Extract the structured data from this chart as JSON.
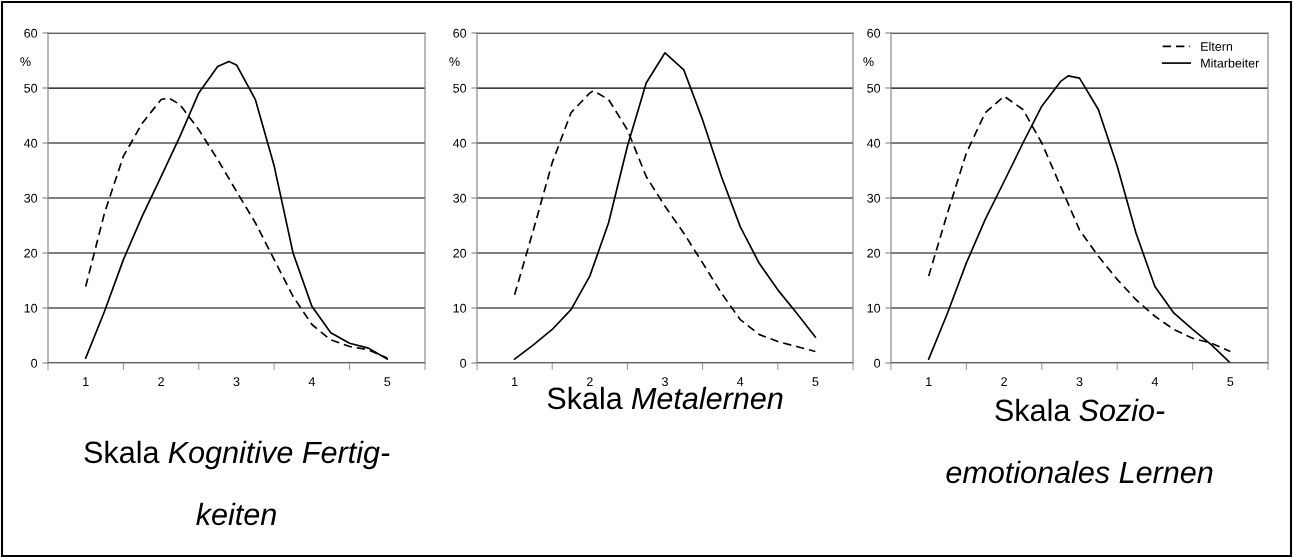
{
  "chart_data": [
    {
      "type": "line",
      "title": "Skala Kognitive Fertig-\nkeiten",
      "ylabel": "%",
      "xlim": [
        0.5,
        5.5
      ],
      "xticks": [
        {
          "value": 0.5,
          "label": null
        },
        1,
        {
          "value": 1.5,
          "label": null
        },
        2,
        {
          "value": 2.5,
          "label": null
        },
        3,
        {
          "value": 3.5,
          "label": null
        },
        4,
        {
          "value": 4.5,
          "label": null
        },
        5,
        {
          "value": 5.5,
          "label": null
        }
      ],
      "ylim": [
        0,
        60
      ],
      "yticks": [
        0,
        10,
        20,
        30,
        40,
        50,
        60
      ],
      "grid": "y",
      "legend": false,
      "series": [
        {
          "color": "#000000",
          "line_style": "dashed",
          "x": [
            1,
            1.25,
            1.5,
            1.75,
            2,
            2.1,
            2.25,
            2.5,
            2.75,
            3,
            3.25,
            3.5,
            3.75,
            4,
            4.25,
            4.5,
            4.75,
            5
          ],
          "values": [
            13.9,
            27.3,
            37.6,
            43.6,
            47.9,
            48.2,
            47,
            42.4,
            37,
            31.2,
            25.5,
            18.8,
            12.1,
            7,
            4.2,
            3,
            2.4,
            0.9
          ]
        },
        {
          "color": "#000000",
          "line_style": "solid",
          "x": [
            1,
            1.25,
            1.5,
            1.75,
            2,
            2.25,
            2.5,
            2.75,
            2.9,
            3,
            3.25,
            3.5,
            3.75,
            4,
            4.25,
            4.5,
            4.75,
            5
          ],
          "values": [
            0.9,
            9.4,
            18.8,
            26.7,
            33.9,
            41.2,
            49.1,
            53.9,
            54.8,
            54.2,
            47.9,
            35.8,
            20,
            10.3,
            5.5,
            3.6,
            2.7,
            0.7
          ]
        }
      ]
    },
    {
      "type": "line",
      "title": "Skala Metalernen",
      "ylabel": "%",
      "xlim": [
        0.5,
        5.5
      ],
      "xticks": [
        {
          "value": 0.5,
          "label": null
        },
        1,
        {
          "value": 1.5,
          "label": null
        },
        2,
        {
          "value": 2.5,
          "label": null
        },
        3,
        {
          "value": 3.5,
          "label": null
        },
        4,
        {
          "value": 4.5,
          "label": null
        },
        5,
        {
          "value": 5.5,
          "label": null
        }
      ],
      "ylim": [
        0,
        60
      ],
      "yticks": [
        0,
        10,
        20,
        30,
        40,
        50,
        60
      ],
      "grid": "y",
      "legend": false,
      "series": [
        {
          "color": "#000000",
          "line_style": "dashed",
          "x": [
            1,
            1.25,
            1.5,
            1.75,
            2,
            2.05,
            2.25,
            2.5,
            2.75,
            3,
            3.25,
            3.5,
            3.75,
            4,
            4.25,
            4.5,
            4.75,
            5
          ],
          "values": [
            12.4,
            24.2,
            36.4,
            45.5,
            49.1,
            49.5,
            47.9,
            42.4,
            33.9,
            28.5,
            23.6,
            18.2,
            12.7,
            7.9,
            5.2,
            3.9,
            3,
            2.1
          ]
        },
        {
          "color": "#000000",
          "line_style": "solid",
          "x": [
            1,
            1.25,
            1.5,
            1.75,
            2,
            2.25,
            2.5,
            2.75,
            3,
            3.25,
            3.5,
            3.75,
            4,
            4.25,
            4.5,
            4.75,
            5
          ],
          "values": [
            0.7,
            3.3,
            6.1,
            9.7,
            15.8,
            25.5,
            39.4,
            50.9,
            56.4,
            53.3,
            44.2,
            33.9,
            24.8,
            18.2,
            13.3,
            9.1,
            4.7
          ]
        }
      ]
    },
    {
      "type": "line",
      "title": "Skala Sozio-\nemotionales Lernen",
      "ylabel": "%",
      "xlim": [
        0.5,
        5.5
      ],
      "xticks": [
        {
          "value": 0.5,
          "label": null
        },
        1,
        {
          "value": 1.5,
          "label": null
        },
        2,
        {
          "value": 2.5,
          "label": null
        },
        3,
        {
          "value": 3.5,
          "label": null
        },
        4,
        {
          "value": 4.5,
          "label": null
        },
        5,
        {
          "value": 5.5,
          "label": null
        }
      ],
      "ylim": [
        0,
        60
      ],
      "yticks": [
        0,
        10,
        20,
        30,
        40,
        50,
        60
      ],
      "grid": "y",
      "legend": "top right",
      "series": [
        {
          "name": "Eltern",
          "color": "#000000",
          "line_style": "dashed",
          "x": [
            1,
            1.25,
            1.5,
            1.75,
            2,
            2.25,
            2.5,
            2.75,
            3,
            3.25,
            3.5,
            3.75,
            4,
            4.25,
            4.5,
            4.75,
            5
          ],
          "values": [
            15.8,
            27.3,
            38.2,
            45.5,
            48.5,
            46.1,
            40,
            32.1,
            24.2,
            19.4,
            15.2,
            11.5,
            8.5,
            6.1,
            4.5,
            3.6,
            2.1
          ]
        },
        {
          "name": "Mitarbeiter",
          "color": "#000000",
          "line_style": "solid",
          "x": [
            1,
            1.25,
            1.5,
            1.75,
            2,
            2.25,
            2.5,
            2.75,
            2.85,
            3,
            3.25,
            3.5,
            3.75,
            4,
            4.25,
            4.5,
            4.75,
            5
          ],
          "values": [
            0.7,
            9.1,
            18.2,
            26.1,
            33,
            40,
            46.7,
            51.2,
            52.2,
            51.8,
            46.1,
            35.8,
            23.6,
            13.9,
            9.1,
            6.1,
            3.3,
            0
          ]
        }
      ]
    }
  ]
}
